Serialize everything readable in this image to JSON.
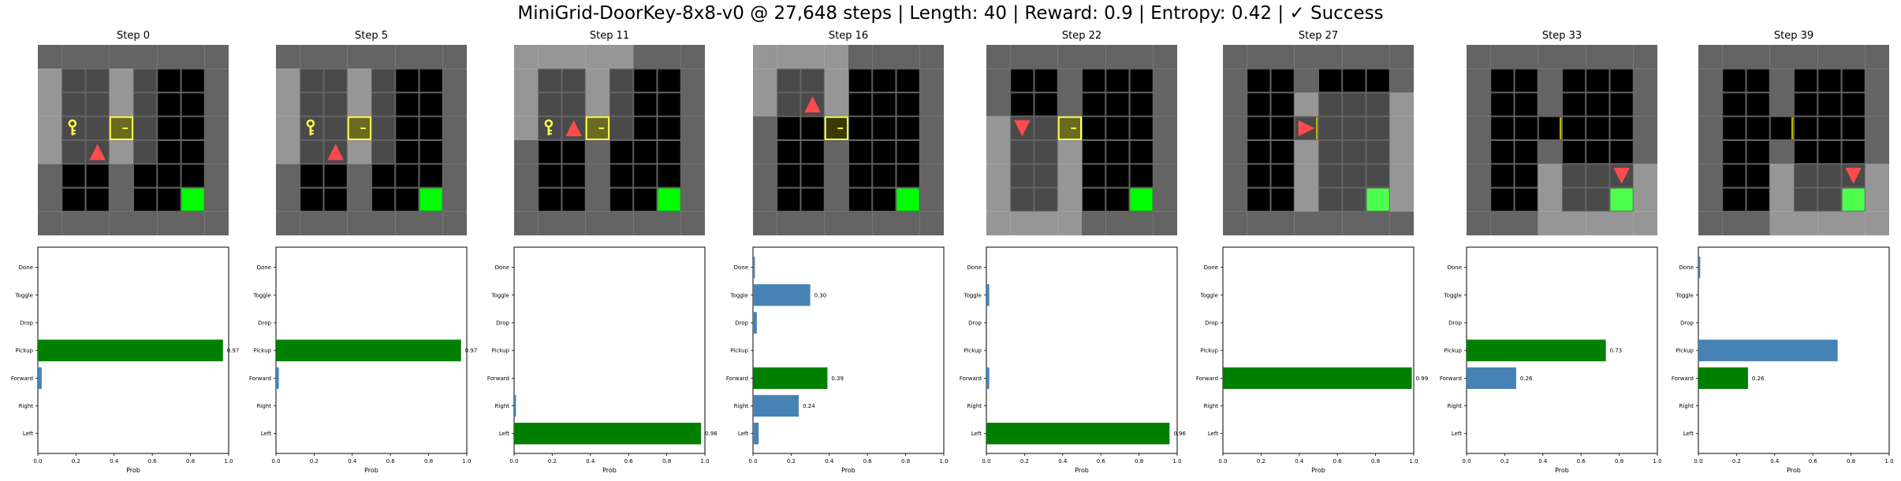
{
  "title": "MiniGrid-DoorKey-8x8-v0 @ 27,648 steps | Length: 40 | Reward: 0.9 | Entropy: 0.42 | ✓ Success",
  "actions": [
    "Left",
    "Right",
    "Forward",
    "Pickup",
    "Drop",
    "Toggle",
    "Done"
  ],
  "xlabel": "Prob",
  "x_ticks": [
    "0.0",
    "0.2",
    "0.4",
    "0.6",
    "0.8",
    "1.0"
  ],
  "colors": {
    "selected": "#008000",
    "other": "#4682b4",
    "wall": "#646464",
    "visible_wall": "#969696",
    "floor": "#000000",
    "visible_floor": "#4a4a4a",
    "goal": "#00ff00",
    "visible_goal": "#4cff4c",
    "agent": "#ff4b4b",
    "key": "#ffff4c",
    "door": "#b4b400"
  },
  "panels": [
    {
      "step_label": "Step 0",
      "grid": {
        "agent": {
          "row": 4,
          "col": 2,
          "dir": "up"
        },
        "key": {
          "row": 3,
          "col": 1
        },
        "door": {
          "row": 3,
          "col": 3,
          "state": "locked"
        },
        "goal": {
          "row": 6,
          "col": 6
        },
        "view": {
          "row0": 1,
          "row1": 4,
          "col0": 0,
          "col1": 4
        }
      },
      "chart_data": {
        "type": "bar",
        "orientation": "horizontal",
        "categories": [
          "Left",
          "Right",
          "Forward",
          "Pickup",
          "Drop",
          "Toggle",
          "Done"
        ],
        "values": [
          0.0,
          0.0,
          0.02,
          0.97,
          0.0,
          0.0,
          0.0
        ],
        "labels": [
          "",
          "",
          "",
          "0.97",
          "",
          "",
          ""
        ],
        "selected": "Pickup",
        "xlabel": "Prob",
        "xlim": [
          0,
          1
        ]
      }
    },
    {
      "step_label": "Step 5",
      "grid": {
        "agent": {
          "row": 4,
          "col": 2,
          "dir": "up"
        },
        "key": {
          "row": 3,
          "col": 1
        },
        "door": {
          "row": 3,
          "col": 3,
          "state": "locked"
        },
        "goal": {
          "row": 6,
          "col": 6
        },
        "view": {
          "row0": 1,
          "row1": 4,
          "col0": 0,
          "col1": 4
        }
      },
      "chart_data": {
        "type": "bar",
        "orientation": "horizontal",
        "categories": [
          "Left",
          "Right",
          "Forward",
          "Pickup",
          "Drop",
          "Toggle",
          "Done"
        ],
        "values": [
          0.0,
          0.0,
          0.015,
          0.97,
          0.0,
          0.0,
          0.0
        ],
        "labels": [
          "",
          "",
          "",
          "0.97",
          "",
          "",
          ""
        ],
        "selected": "Pickup",
        "xlabel": "Prob",
        "xlim": [
          0,
          1
        ]
      }
    },
    {
      "step_label": "Step 11",
      "grid": {
        "agent": {
          "row": 3,
          "col": 2,
          "dir": "up"
        },
        "key": {
          "row": 3,
          "col": 1
        },
        "door": {
          "row": 3,
          "col": 3,
          "state": "locked"
        },
        "goal": {
          "row": 6,
          "col": 6
        },
        "view": {
          "row0": 0,
          "row1": 3,
          "col0": 0,
          "col1": 4
        }
      },
      "chart_data": {
        "type": "bar",
        "orientation": "horizontal",
        "categories": [
          "Left",
          "Right",
          "Forward",
          "Pickup",
          "Drop",
          "Toggle",
          "Done"
        ],
        "values": [
          0.98,
          0.01,
          0.0,
          0.0,
          0.0,
          0.0,
          0.0
        ],
        "labels": [
          "0.98",
          "",
          "",
          "",
          "",
          "",
          ""
        ],
        "selected": "Left",
        "xlabel": "Prob",
        "xlim": [
          0,
          1
        ]
      }
    },
    {
      "step_label": "Step 16",
      "grid": {
        "agent": {
          "row": 2,
          "col": 2,
          "dir": "up"
        },
        "key": null,
        "door": {
          "row": 3,
          "col": 3,
          "state": "locked-selected"
        },
        "goal": {
          "row": 6,
          "col": 6
        },
        "view": {
          "row0": 0,
          "row1": 2,
          "col0": 0,
          "col1": 3
        }
      },
      "chart_data": {
        "type": "bar",
        "orientation": "horizontal",
        "categories": [
          "Left",
          "Right",
          "Forward",
          "Pickup",
          "Drop",
          "Toggle",
          "Done"
        ],
        "values": [
          0.03,
          0.24,
          0.39,
          0.0,
          0.02,
          0.3,
          0.01
        ],
        "labels": [
          "",
          "0.24",
          "0.39",
          "",
          "",
          "0.30",
          ""
        ],
        "selected": "Forward",
        "xlabel": "Prob",
        "xlim": [
          0,
          1
        ]
      }
    },
    {
      "step_label": "Step 22",
      "grid": {
        "agent": {
          "row": 3,
          "col": 1,
          "dir": "down"
        },
        "key": null,
        "door": {
          "row": 3,
          "col": 3,
          "state": "locked"
        },
        "goal": {
          "row": 6,
          "col": 6
        },
        "view": {
          "row0": 3,
          "row1": 7,
          "col0": 0,
          "col1": 3
        }
      },
      "chart_data": {
        "type": "bar",
        "orientation": "horizontal",
        "categories": [
          "Left",
          "Right",
          "Forward",
          "Pickup",
          "Drop",
          "Toggle",
          "Done"
        ],
        "values": [
          0.96,
          0.0,
          0.015,
          0.0,
          0.0,
          0.015,
          0.0
        ],
        "labels": [
          "0.96",
          "",
          "",
          "",
          "",
          "",
          ""
        ],
        "selected": "Left",
        "xlabel": "Prob",
        "xlim": [
          0,
          1
        ]
      }
    },
    {
      "step_label": "Step 27",
      "grid": {
        "agent": {
          "row": 3,
          "col": 3,
          "dir": "right"
        },
        "key": null,
        "door": {
          "row": 3,
          "col": 3,
          "state": "open"
        },
        "goal": {
          "row": 6,
          "col": 6
        },
        "view": {
          "row0": 2,
          "row1": 6,
          "col0": 3,
          "col1": 7
        }
      },
      "chart_data": {
        "type": "bar",
        "orientation": "horizontal",
        "categories": [
          "Left",
          "Right",
          "Forward",
          "Pickup",
          "Drop",
          "Toggle",
          "Done"
        ],
        "values": [
          0.0,
          0.0,
          0.99,
          0.0,
          0.0,
          0.0,
          0.0
        ],
        "labels": [
          "",
          "",
          "0.99",
          "",
          "",
          "",
          ""
        ],
        "selected": "Forward",
        "xlabel": "Prob",
        "xlim": [
          0,
          1
        ]
      }
    },
    {
      "step_label": "Step 33",
      "grid": {
        "agent": {
          "row": 5,
          "col": 6,
          "dir": "down"
        },
        "key": null,
        "door": {
          "row": 3,
          "col": 3,
          "state": "open"
        },
        "goal": {
          "row": 6,
          "col": 6
        },
        "view": {
          "row0": 5,
          "row1": 7,
          "col0": 3,
          "col1": 7
        }
      },
      "chart_data": {
        "type": "bar",
        "orientation": "horizontal",
        "categories": [
          "Left",
          "Right",
          "Forward",
          "Pickup",
          "Drop",
          "Toggle",
          "Done"
        ],
        "values": [
          0.0,
          0.0,
          0.26,
          0.73,
          0.0,
          0.0,
          0.0
        ],
        "labels": [
          "",
          "",
          "0.26",
          "0.73",
          "",
          "",
          ""
        ],
        "selected": "Pickup",
        "xlabel": "Prob",
        "xlim": [
          0,
          1
        ]
      }
    },
    {
      "step_label": "Step 39",
      "grid": {
        "agent": {
          "row": 5,
          "col": 6,
          "dir": "down"
        },
        "key": null,
        "door": {
          "row": 3,
          "col": 3,
          "state": "open"
        },
        "goal": {
          "row": 6,
          "col": 6
        },
        "view": {
          "row0": 5,
          "row1": 7,
          "col0": 3,
          "col1": 7
        }
      },
      "chart_data": {
        "type": "bar",
        "orientation": "horizontal",
        "categories": [
          "Left",
          "Right",
          "Forward",
          "Pickup",
          "Drop",
          "Toggle",
          "Done"
        ],
        "values": [
          0.0,
          0.0,
          0.26,
          0.73,
          0.0,
          0.0,
          0.01
        ],
        "labels": [
          "",
          "",
          "0.26",
          "",
          "",
          "",
          ""
        ],
        "selected": "Forward",
        "xlabel": "Prob",
        "xlim": [
          0,
          1
        ]
      }
    }
  ]
}
